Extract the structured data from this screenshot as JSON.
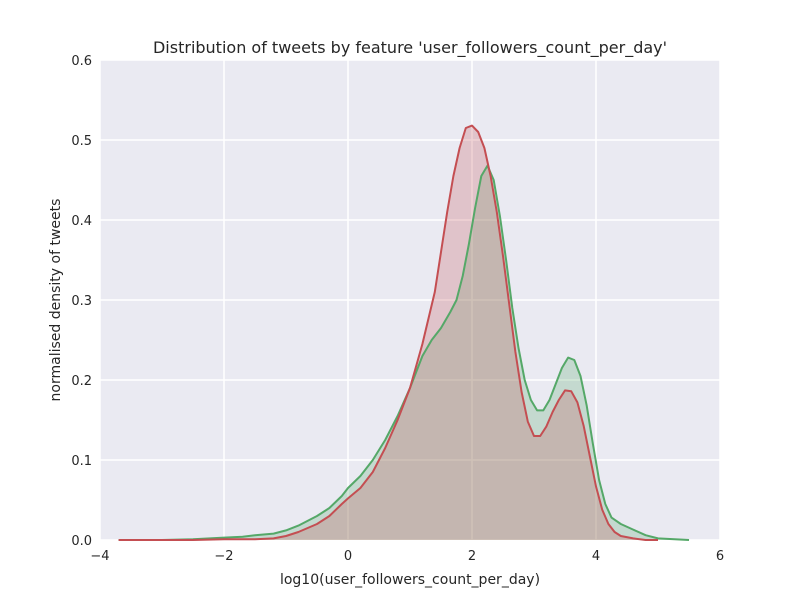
{
  "chart_data": {
    "type": "area",
    "title": "Distribution of tweets by feature 'user_followers_count_per_day'",
    "xlabel": "log10(user_followers_count_per_day)",
    "ylabel": "normalised density of tweets",
    "xlim": [
      -4,
      6
    ],
    "ylim": [
      0,
      0.6
    ],
    "x_ticks": [
      "−4",
      "−2",
      "0",
      "2",
      "4",
      "6"
    ],
    "y_ticks": [
      "0.0",
      "0.1",
      "0.2",
      "0.3",
      "0.4",
      "0.5",
      "0.6"
    ],
    "x_tick_values": [
      -4,
      -2,
      0,
      2,
      4,
      6
    ],
    "y_tick_values": [
      0,
      0.1,
      0.2,
      0.3,
      0.4,
      0.5,
      0.6
    ],
    "grid": true,
    "background": "#eaeaf2",
    "series": [
      {
        "color": "#55a868",
        "fill": "#55a868",
        "x": [
          -3.7,
          -3.0,
          -2.5,
          -2.0,
          -1.7,
          -1.5,
          -1.2,
          -1.0,
          -0.8,
          -0.5,
          -0.3,
          -0.1,
          0.0,
          0.2,
          0.4,
          0.6,
          0.8,
          1.0,
          1.1,
          1.2,
          1.35,
          1.5,
          1.65,
          1.75,
          1.85,
          1.95,
          2.05,
          2.15,
          2.25,
          2.35,
          2.45,
          2.55,
          2.65,
          2.75,
          2.85,
          2.95,
          3.05,
          3.15,
          3.25,
          3.35,
          3.45,
          3.55,
          3.65,
          3.75,
          3.85,
          3.95,
          4.05,
          4.15,
          4.25,
          4.4,
          4.6,
          4.8,
          5.0,
          5.5
        ],
        "y": [
          0.0,
          0.0,
          0.001,
          0.003,
          0.004,
          0.006,
          0.008,
          0.012,
          0.018,
          0.03,
          0.04,
          0.055,
          0.065,
          0.08,
          0.1,
          0.125,
          0.155,
          0.19,
          0.21,
          0.23,
          0.25,
          0.265,
          0.285,
          0.3,
          0.33,
          0.37,
          0.415,
          0.455,
          0.468,
          0.45,
          0.405,
          0.35,
          0.29,
          0.24,
          0.2,
          0.175,
          0.162,
          0.162,
          0.175,
          0.195,
          0.215,
          0.228,
          0.225,
          0.205,
          0.168,
          0.12,
          0.075,
          0.045,
          0.028,
          0.02,
          0.013,
          0.006,
          0.002,
          0.0
        ]
      },
      {
        "color": "#c44e52",
        "fill": "#c44e52",
        "x": [
          -3.7,
          -3.0,
          -2.5,
          -2.0,
          -1.7,
          -1.5,
          -1.2,
          -1.0,
          -0.8,
          -0.5,
          -0.3,
          -0.1,
          0.0,
          0.2,
          0.4,
          0.6,
          0.8,
          1.0,
          1.2,
          1.4,
          1.5,
          1.6,
          1.7,
          1.8,
          1.9,
          2.0,
          2.1,
          2.2,
          2.3,
          2.4,
          2.5,
          2.6,
          2.7,
          2.8,
          2.9,
          3.0,
          3.1,
          3.2,
          3.3,
          3.4,
          3.5,
          3.6,
          3.7,
          3.8,
          3.9,
          4.0,
          4.1,
          4.2,
          4.3,
          4.4,
          4.6,
          4.8,
          5.0
        ],
        "y": [
          0.0,
          0.0,
          0.0,
          0.001,
          0.001,
          0.001,
          0.002,
          0.005,
          0.01,
          0.02,
          0.03,
          0.045,
          0.052,
          0.065,
          0.085,
          0.115,
          0.15,
          0.19,
          0.245,
          0.31,
          0.36,
          0.41,
          0.455,
          0.49,
          0.515,
          0.518,
          0.51,
          0.49,
          0.455,
          0.41,
          0.355,
          0.295,
          0.235,
          0.185,
          0.148,
          0.13,
          0.13,
          0.142,
          0.16,
          0.175,
          0.187,
          0.186,
          0.172,
          0.143,
          0.105,
          0.067,
          0.038,
          0.02,
          0.01,
          0.005,
          0.002,
          0.0,
          0.0
        ]
      }
    ]
  }
}
